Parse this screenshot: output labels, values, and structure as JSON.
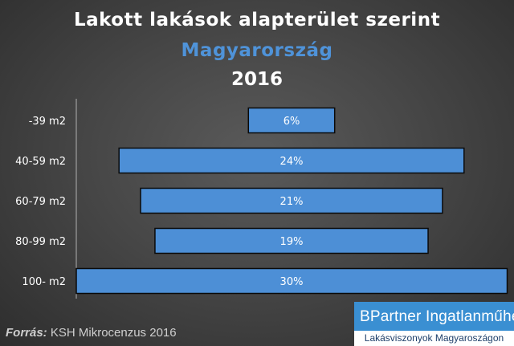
{
  "title": {
    "line1": "Lakott lakások alapterület szerint",
    "line2": "Magyarország",
    "line3": "2016"
  },
  "source": {
    "label": "Forrás:",
    "text": "KSH Mikrocenzus 2016"
  },
  "brand": {
    "name": "BPartner Ingatlanműhely",
    "tagline": "Lakásviszonyok Magyaroszágon"
  },
  "colors": {
    "title": "#ffffff",
    "subtitle": "#4f93d9",
    "bar_fill": "#4d8fd6",
    "bar_stroke": "#0a0a0a",
    "label": "#ffffff"
  },
  "chart_data": {
    "type": "bar",
    "orientation": "horizontal",
    "style": "centered-population-pyramid",
    "categories": [
      "-39 m2",
      "40-59 m2",
      "60-79 m2",
      "80-99 m2",
      "100- m2"
    ],
    "values": [
      6,
      24,
      21,
      19,
      30
    ],
    "data_labels": [
      "6%",
      "24%",
      "21%",
      "19%",
      "30%"
    ],
    "unit": "%",
    "grid": false,
    "legend": "none"
  }
}
